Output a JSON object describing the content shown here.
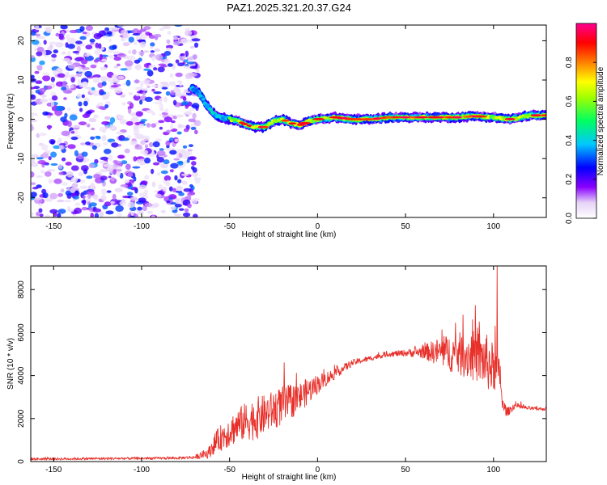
{
  "title": "PAZ1.2025.321.20.37.G24",
  "colors": {
    "snr_line": "#e8302a",
    "axes": "#000000",
    "background": "#ffffff"
  },
  "chart_data": [
    {
      "type": "heatmap",
      "name": "spectrogram",
      "title": "PAZ1.2025.321.20.37.G24",
      "xlabel": "Height of straight line (km)",
      "ylabel": "Frequency (Hz)",
      "xlim": [
        -163,
        130
      ],
      "ylim": [
        -25,
        24
      ],
      "x_ticks": [
        -150,
        -100,
        -50,
        0,
        50,
        100
      ],
      "y_ticks": [
        -20,
        -10,
        0,
        10,
        20
      ],
      "colorbar": {
        "label": "Normalized spectral amplitude",
        "range": [
          0,
          1
        ],
        "ticks": [
          0.0,
          0.2,
          0.4,
          0.6,
          0.8
        ],
        "tick_labels": [
          "0.0",
          "0.2",
          "0.4",
          "0.6",
          "0.8"
        ],
        "colormap": "rainbow (white-violet-blue-cyan-green-yellow-red-magenta)"
      },
      "noise_region": {
        "x_range": [
          -163,
          -68
        ],
        "freq_range": [
          -25,
          24
        ],
        "amplitude": [
          0.05,
          0.35
        ]
      },
      "ridge": [
        {
          "x": -72,
          "freq": 8.0
        },
        {
          "x": -68,
          "freq": 7.0
        },
        {
          "x": -65,
          "freq": 5.0
        },
        {
          "x": -62,
          "freq": 3.0
        },
        {
          "x": -58,
          "freq": 1.0
        },
        {
          "x": -55,
          "freq": 0.5
        },
        {
          "x": -50,
          "freq": 0.0
        },
        {
          "x": -45,
          "freq": -0.5
        },
        {
          "x": -40,
          "freq": -1.5
        },
        {
          "x": -35,
          "freq": -2.0
        },
        {
          "x": -30,
          "freq": -2.0
        },
        {
          "x": -25,
          "freq": -0.5
        },
        {
          "x": -20,
          "freq": 0.0
        },
        {
          "x": -15,
          "freq": -1.0
        },
        {
          "x": -10,
          "freq": -1.5
        },
        {
          "x": -5,
          "freq": -0.5
        },
        {
          "x": 0,
          "freq": 0.0
        },
        {
          "x": 10,
          "freq": 0.5
        },
        {
          "x": 20,
          "freq": 0.0
        },
        {
          "x": 30,
          "freq": 0.0
        },
        {
          "x": 40,
          "freq": 0.5
        },
        {
          "x": 50,
          "freq": 0.5
        },
        {
          "x": 60,
          "freq": 0.5
        },
        {
          "x": 70,
          "freq": 0.5
        },
        {
          "x": 80,
          "freq": 0.5
        },
        {
          "x": 90,
          "freq": 0.8
        },
        {
          "x": 100,
          "freq": 0.5
        },
        {
          "x": 110,
          "freq": 0.0
        },
        {
          "x": 120,
          "freq": 1.0
        },
        {
          "x": 130,
          "freq": 1.0
        }
      ]
    },
    {
      "type": "line",
      "name": "snr",
      "xlabel": "Height of straight line (km)",
      "ylabel": "SNR (10 * v/v)",
      "xlim": [
        -163,
        130
      ],
      "ylim": [
        0,
        9100
      ],
      "x_ticks": [
        -150,
        -100,
        -50,
        0,
        50,
        100
      ],
      "y_ticks": [
        0,
        2000,
        4000,
        6000,
        8000
      ],
      "series": [
        {
          "name": "SNR",
          "x": [
            -163,
            -140,
            -120,
            -100,
            -80,
            -70,
            -62,
            -58,
            -52,
            -45,
            -40,
            -35,
            -30,
            -25,
            -20,
            -15,
            -10,
            -5,
            0,
            10,
            20,
            30,
            40,
            50,
            60,
            70,
            80,
            90,
            95,
            98,
            100,
            102,
            104,
            105,
            108,
            112,
            118,
            124,
            130
          ],
          "mean": [
            120,
            130,
            140,
            150,
            160,
            200,
            400,
            900,
            1300,
            1700,
            1900,
            2000,
            2200,
            2400,
            2600,
            2800,
            3000,
            3300,
            3600,
            4100,
            4600,
            4800,
            5000,
            5050,
            5100,
            5100,
            5000,
            4900,
            4700,
            4500,
            4300,
            4200,
            4000,
            2600,
            2300,
            2600,
            2500,
            2450,
            2450
          ],
          "noise": [
            60,
            60,
            60,
            60,
            60,
            80,
            250,
            500,
            700,
            800,
            900,
            1000,
            900,
            900,
            900,
            800,
            700,
            600,
            450,
            250,
            150,
            120,
            120,
            150,
            300,
            700,
            1000,
            1200,
            1300,
            1300,
            1100,
            900,
            700,
            400,
            200,
            150,
            100,
            80,
            80
          ],
          "peaks": [
            {
              "x": -19,
              "y": 4600
            },
            {
              "x": 88,
              "y": 6600
            },
            {
              "x": 92,
              "y": 6500
            },
            {
              "x": 101,
              "y": 6300
            },
            {
              "x": 102,
              "y": 9100
            }
          ]
        }
      ]
    }
  ]
}
